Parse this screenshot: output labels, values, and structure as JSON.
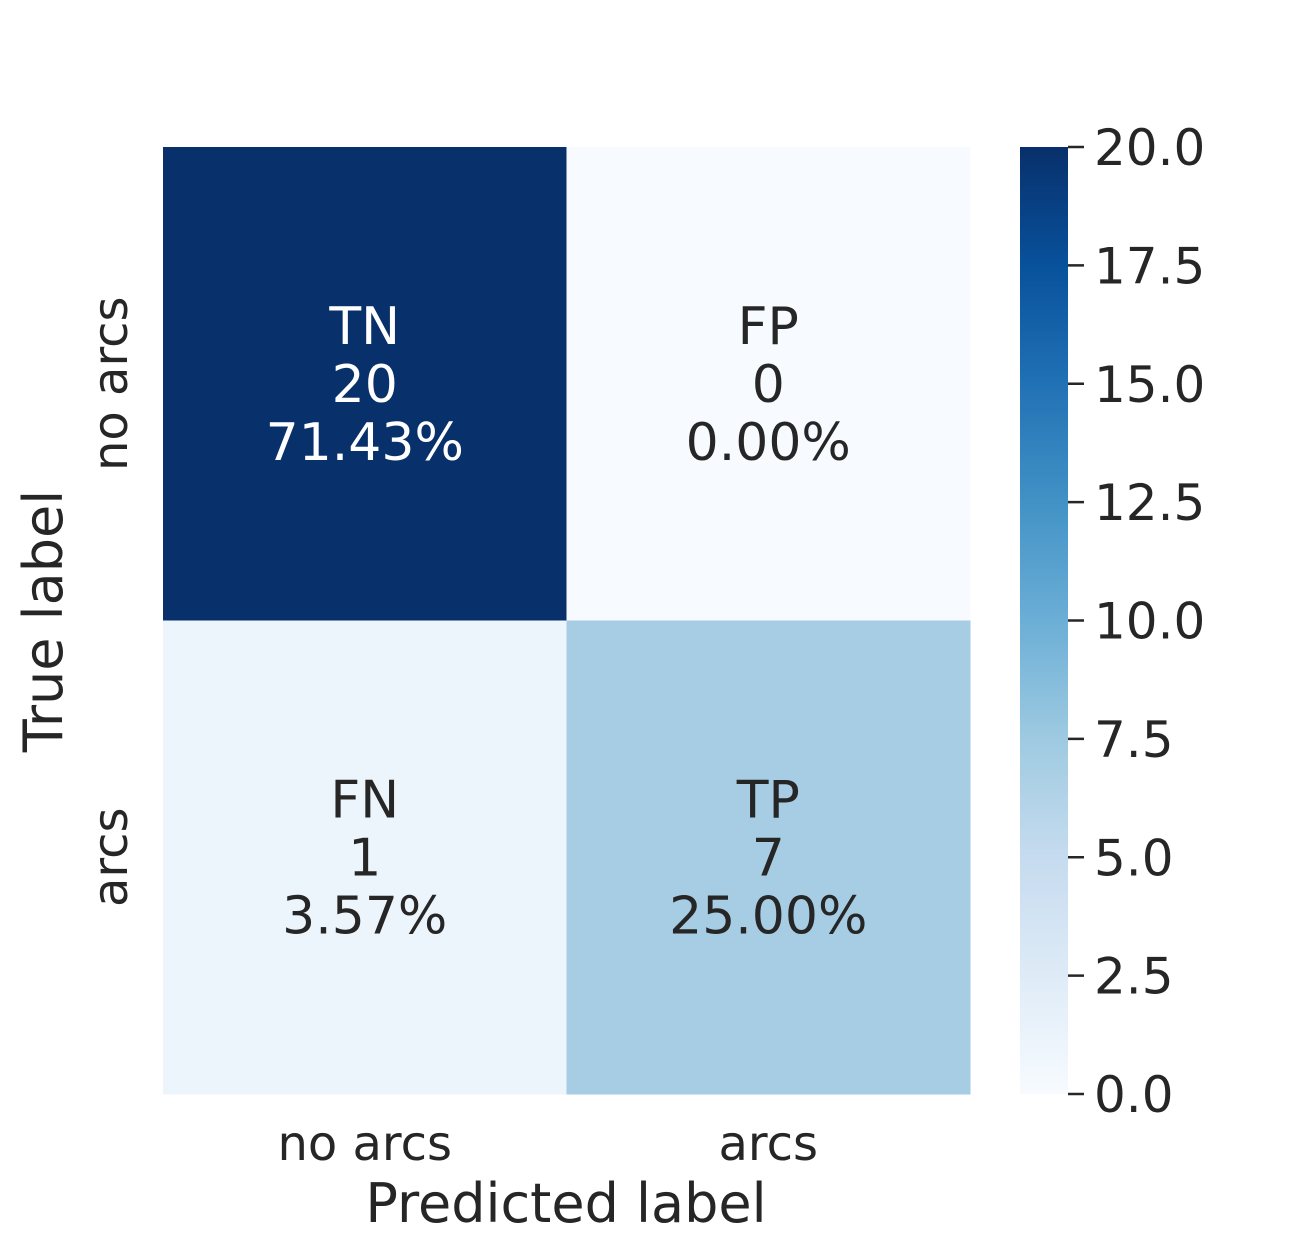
{
  "chart_data": {
    "type": "heatmap",
    "title": "",
    "xlabel": "Predicted label",
    "ylabel": "True label",
    "x_categories": [
      "no arcs",
      "arcs"
    ],
    "y_categories": [
      "no arcs",
      "arcs"
    ],
    "cells": [
      {
        "row": 0,
        "col": 0,
        "label": "TN",
        "value": 20,
        "percent": "71.43%"
      },
      {
        "row": 0,
        "col": 1,
        "label": "FP",
        "value": 0,
        "percent": "0.00%"
      },
      {
        "row": 1,
        "col": 0,
        "label": "FN",
        "value": 1,
        "percent": "3.57%"
      },
      {
        "row": 1,
        "col": 1,
        "label": "TP",
        "value": 7,
        "percent": "25.00%"
      }
    ],
    "colorbar": {
      "range": [
        0,
        20
      ],
      "ticks": [
        "0.0",
        "2.5",
        "5.0",
        "7.5",
        "10.0",
        "12.5",
        "15.0",
        "17.5",
        "20.0"
      ],
      "colormap": "Blues",
      "colors": [
        "#f7fbff",
        "#deebf7",
        "#c6dbef",
        "#9ecae1",
        "#6baed6",
        "#4292c6",
        "#2171b5",
        "#08519c",
        "#08306b"
      ]
    },
    "grid": false
  },
  "colors": {
    "text_dark": "#262626",
    "text_light": "#ffffff"
  }
}
